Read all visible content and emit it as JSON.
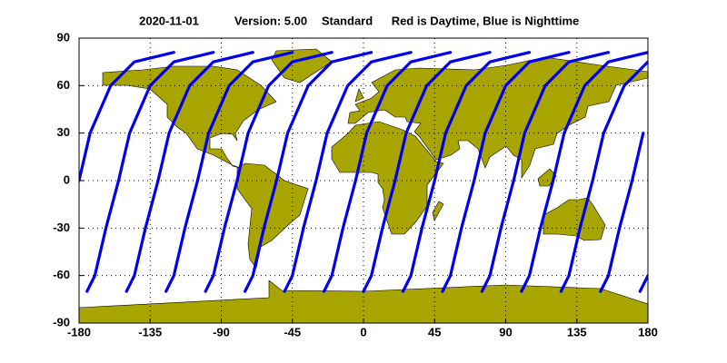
{
  "chart_data": {
    "type": "line",
    "title_parts": [
      "2020-11-01",
      "Version: 5.00",
      "Standard",
      "Red is Daytime, Blue is Nighttime"
    ],
    "xlim": [
      -180,
      180
    ],
    "ylim": [
      -90,
      90
    ],
    "xticks": [
      -180,
      -135,
      -90,
      -45,
      0,
      45,
      90,
      135,
      180
    ],
    "yticks": [
      -90,
      -60,
      -30,
      0,
      30,
      60,
      90
    ],
    "grid": true,
    "track_color": "#0000ee",
    "tracks": [
      {
        "x": [
          -180,
          -173,
          -160,
          -145,
          -120
        ],
        "y": [
          0,
          30,
          60,
          75,
          81
        ]
      },
      {
        "x": [
          -175,
          -170,
          -163,
          -155,
          -148,
          -135,
          -120,
          -95
        ],
        "y": [
          -70,
          -60,
          -30,
          0,
          30,
          60,
          75,
          81
        ]
      },
      {
        "x": [
          -150,
          -145,
          -138,
          -130,
          -123,
          -110,
          -95,
          -70
        ],
        "y": [
          -70,
          -60,
          -30,
          0,
          30,
          60,
          75,
          81
        ]
      },
      {
        "x": [
          -125,
          -120,
          -113,
          -105,
          -98,
          -85,
          -70,
          -45
        ],
        "y": [
          -70,
          -60,
          -30,
          0,
          30,
          60,
          75,
          81
        ]
      },
      {
        "x": [
          -100,
          -95,
          -88,
          -80,
          -73,
          -60,
          -45,
          -20
        ],
        "y": [
          -70,
          -60,
          -30,
          0,
          30,
          60,
          75,
          81
        ]
      },
      {
        "x": [
          -75,
          -70,
          -63,
          -55,
          -48,
          -35,
          -20,
          5
        ],
        "y": [
          -70,
          -60,
          -30,
          0,
          30,
          60,
          75,
          81
        ]
      },
      {
        "x": [
          -50,
          -45,
          -38,
          -30,
          -23,
          -10,
          5,
          30
        ],
        "y": [
          -70,
          -60,
          -30,
          0,
          30,
          60,
          75,
          81
        ]
      },
      {
        "x": [
          -25,
          -20,
          -13,
          -5,
          2,
          15,
          30,
          55
        ],
        "y": [
          -70,
          -60,
          -30,
          0,
          30,
          60,
          75,
          81
        ]
      },
      {
        "x": [
          0,
          5,
          12,
          20,
          27,
          40,
          55,
          80
        ],
        "y": [
          -70,
          -60,
          -30,
          0,
          30,
          60,
          75,
          81
        ]
      },
      {
        "x": [
          25,
          30,
          37,
          45,
          52,
          65,
          80,
          105
        ],
        "y": [
          -70,
          -60,
          -30,
          0,
          30,
          60,
          75,
          81
        ]
      },
      {
        "x": [
          50,
          55,
          62,
          70,
          77,
          90,
          105,
          130
        ],
        "y": [
          -70,
          -60,
          -30,
          0,
          30,
          60,
          75,
          81
        ]
      },
      {
        "x": [
          75,
          80,
          87,
          95,
          102,
          115,
          130,
          155
        ],
        "y": [
          -70,
          -60,
          -30,
          0,
          30,
          60,
          75,
          81
        ]
      },
      {
        "x": [
          100,
          105,
          112,
          120,
          127,
          140,
          155,
          180
        ],
        "y": [
          -70,
          -60,
          -30,
          0,
          30,
          60,
          75,
          81
        ]
      },
      {
        "x": [
          125,
          130,
          137,
          145,
          152,
          165,
          180
        ],
        "y": [
          -70,
          -60,
          -30,
          0,
          30,
          60,
          75
        ]
      },
      {
        "x": [
          150,
          155,
          162,
          170,
          177
        ],
        "y": [
          -70,
          -60,
          -30,
          0,
          30
        ]
      },
      {
        "x": [
          175,
          180
        ],
        "y": [
          -70,
          -60
        ]
      }
    ]
  }
}
